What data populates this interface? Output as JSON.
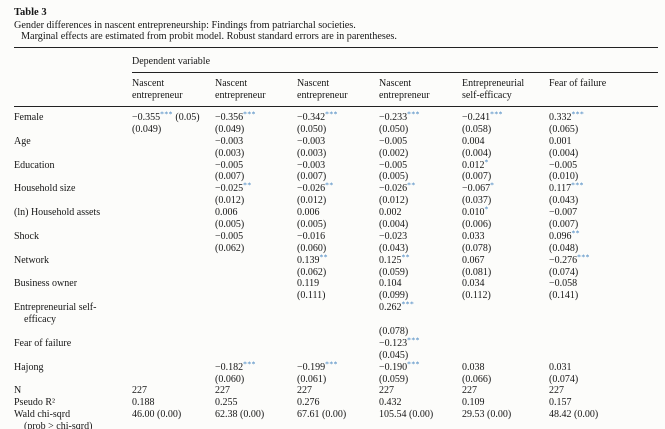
{
  "title": "Table 3",
  "caption": "Gender differences in nascent entrepreneurship: Findings from patriarchal societies.",
  "note": "Marginal effects are estimated from probit model. Robust standard errors are in parentheses.",
  "table": {
    "header": {
      "group": "Dependent variable",
      "columns": [
        "Nascent entrepreneur",
        "Nascent entrepreneur",
        "Nascent entrepreneur",
        "Nascent entrepreneur",
        "Entrepreneurial self-efficacy",
        "Fear of failure"
      ]
    },
    "star_color": "#2e76ba",
    "rows": [
      {
        "label_lines": [
          "Female"
        ],
        "cells": [
          {
            "coef": "−0.355",
            "stars": "***",
            "post": " (0.05)",
            "se": "(0.049)"
          },
          {
            "coef": "−0.356",
            "stars": "***",
            "se": "(0.049)"
          },
          {
            "coef": "−0.342",
            "stars": "***",
            "se": "(0.050)"
          },
          {
            "coef": "−0.233",
            "stars": "***",
            "se": "(0.050)"
          },
          {
            "coef": "−0.241",
            "stars": "***",
            "se": "(0.058)"
          },
          {
            "coef": "0.332",
            "stars": "***",
            "se": "(0.065)"
          }
        ]
      },
      {
        "label_lines": [
          "Age"
        ],
        "cells": [
          null,
          {
            "coef": "−0.003",
            "se": "(0.003)"
          },
          {
            "coef": "−0.003",
            "se": "(0.003)"
          },
          {
            "coef": "−0.005",
            "se": "(0.002)"
          },
          {
            "coef": "0.004",
            "se": "(0.004)"
          },
          {
            "coef": "0.001",
            "se": "(0.004)"
          }
        ]
      },
      {
        "label_lines": [
          "Education"
        ],
        "cells": [
          null,
          {
            "coef": "−0.005",
            "se": "(0.007)"
          },
          {
            "coef": "−0.003",
            "se": "(0.007)"
          },
          {
            "coef": "−0.005",
            "se": "(0.005)"
          },
          {
            "coef": "0.012",
            "stars": "*",
            "se": "(0.007)"
          },
          {
            "coef": "−0.005",
            "se": "(0.010)"
          }
        ]
      },
      {
        "label_lines": [
          "Household size"
        ],
        "cells": [
          null,
          {
            "coef": "−0.025",
            "stars": "**",
            "se": "(0.012)"
          },
          {
            "coef": "−0.026",
            "stars": "**",
            "se": "(0.012)"
          },
          {
            "coef": "−0.026",
            "stars": "**",
            "se": "(0.012)"
          },
          {
            "coef": "−0.067",
            "stars": "*",
            "se": "(0.037)"
          },
          {
            "coef": "0.117",
            "stars": "***",
            "se": "(0.043)"
          }
        ]
      },
      {
        "label_lines": [
          "(ln) Household assets"
        ],
        "cells": [
          null,
          {
            "coef": "0.006",
            "se": "(0.005)"
          },
          {
            "coef": "0.006",
            "se": "(0.005)"
          },
          {
            "coef": "0.002",
            "se": "(0.004)"
          },
          {
            "coef": "0.010",
            "stars": "*",
            "se": "(0.006)"
          },
          {
            "coef": "−0.007",
            "se": "(0.007)"
          }
        ]
      },
      {
        "label_lines": [
          "Shock"
        ],
        "cells": [
          null,
          {
            "coef": "−0.005",
            "se": "(0.062)"
          },
          {
            "coef": "−0.016",
            "se": "(0.060)"
          },
          {
            "coef": "−0.023",
            "se": "(0.043)"
          },
          {
            "coef": "0.033",
            "se": "(0.078)"
          },
          {
            "coef": "0.096",
            "stars": "**",
            "se": "(0.048)"
          }
        ]
      },
      {
        "label_lines": [
          "Network"
        ],
        "cells": [
          null,
          null,
          {
            "coef": "0.139",
            "stars": "**",
            "se": "(0.062)"
          },
          {
            "coef": "0.125",
            "stars": "**",
            "se": "(0.059)"
          },
          {
            "coef": "0.067",
            "se": "(0.081)"
          },
          {
            "coef": "−0.276",
            "stars": "***",
            "se": "(0.074)"
          }
        ]
      },
      {
        "label_lines": [
          "Business owner"
        ],
        "cells": [
          null,
          null,
          {
            "coef": "0.119",
            "se": "(0.111)"
          },
          {
            "coef": "0.104",
            "se": "(0.099)"
          },
          {
            "coef": "0.034",
            "se": "(0.112)"
          },
          {
            "coef": "−0.058",
            "se": "(0.141)"
          }
        ]
      },
      {
        "label_lines": [
          "Entrepreneurial self-",
          "efficacy"
        ],
        "se_gap": true,
        "cells": [
          null,
          null,
          null,
          {
            "coef": "0.262",
            "stars": "***",
            "se": "(0.078)"
          },
          null,
          null
        ]
      },
      {
        "label_lines": [
          "Fear of failure"
        ],
        "cells": [
          null,
          null,
          null,
          {
            "coef": "−0.123",
            "stars": "***",
            "se": "(0.045)"
          },
          null,
          null
        ]
      },
      {
        "label_lines": [
          "Hajong"
        ],
        "cells": [
          null,
          {
            "coef": "−0.182",
            "stars": "***",
            "se": "(0.060)"
          },
          {
            "coef": "−0.199",
            "stars": "***",
            "se": "(0.061)"
          },
          {
            "coef": "−0.190",
            "stars": "***",
            "se": "(0.059)"
          },
          {
            "coef": "0.038",
            "se": "(0.066)"
          },
          {
            "coef": "0.031",
            "se": "(0.074)"
          }
        ]
      }
    ],
    "stats": [
      {
        "label_lines": [
          "N"
        ],
        "values": [
          "227",
          "227",
          "227",
          "227",
          "227",
          "227"
        ]
      },
      {
        "label_lines": [
          "Pseudo R²"
        ],
        "values": [
          "0.188",
          "0.255",
          "0.276",
          "0.432",
          "0.109",
          "0.157"
        ]
      },
      {
        "label_lines": [
          "Wald chi-sqrd",
          "(prob > chi-sqrd)"
        ],
        "values": [
          "46.00 (0.00)",
          "62.38 (0.00)",
          "67.61 (0.00)",
          "105.54 (0.00)",
          "29.53 (0.00)",
          "48.42 (0.00)"
        ]
      }
    ]
  }
}
